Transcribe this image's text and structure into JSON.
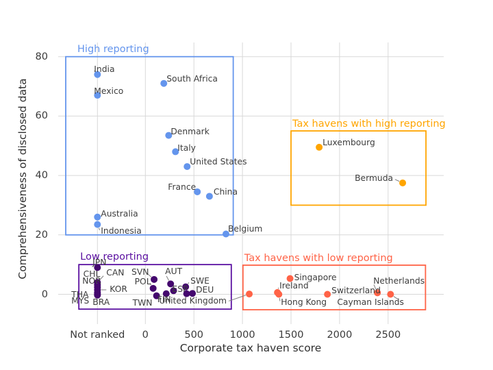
{
  "chart_data": {
    "type": "scatter",
    "title": "",
    "xlabel": "Corporate tax haven score",
    "ylabel": "Comprehensiveness of disclosed data",
    "x_ticks": [
      "Not ranked",
      "0",
      "500",
      "1000",
      "1500",
      "2000",
      "2500"
    ],
    "y_ticks": [
      "0",
      "20",
      "40",
      "60",
      "80"
    ],
    "xlim": [
      "Not ranked",
      3000
    ],
    "ylim": [
      -7,
      85
    ],
    "grid": true,
    "legend_position": "none",
    "grid_color": "#d8d8d8",
    "label_color": "#3d3d3d",
    "connector_color": "#7f7f7f",
    "note_x_values": "x is corporate tax haven score; 'NR' means plotted in the Not ranked column",
    "series": [
      {
        "name": "High reporting",
        "color": "#6495ED",
        "dot_color": "#6495ED",
        "box": {
          "x": [
            -820,
            905
          ],
          "y": [
            20,
            80
          ]
        },
        "label_offset": [
          17,
          -19
        ],
        "points": [
          {
            "label": "India",
            "x": "NR",
            "y": 74,
            "dx": -5,
            "dy": -15,
            "align": "l",
            "line": true
          },
          {
            "label": "Mexico",
            "x": "NR",
            "y": 67,
            "dx": -5,
            "dy": -13,
            "align": "l",
            "line": true
          },
          {
            "label": "South Africa",
            "x": 190,
            "y": 71,
            "dx": 4,
            "dy": -14,
            "align": "l",
            "line": true
          },
          {
            "label": "Denmark",
            "x": 240,
            "y": 53.5,
            "dx": 3,
            "dy": -13,
            "align": "l",
            "line": true
          },
          {
            "label": "Italy",
            "x": 310,
            "y": 48,
            "dx": 3,
            "dy": -12,
            "align": "l",
            "line": true
          },
          {
            "label": "United States",
            "x": 430,
            "y": 43,
            "dx": 4,
            "dy": -14,
            "align": "l",
            "line": true
          },
          {
            "label": "France",
            "x": 535,
            "y": 34.5,
            "dx": -2,
            "dy": -14,
            "align": "r",
            "line": true
          },
          {
            "label": "China",
            "x": 660,
            "y": 33,
            "dx": 6,
            "dy": -13,
            "align": "l",
            "line": true
          },
          {
            "label": "Australia",
            "x": "NR",
            "y": 26,
            "dx": 5,
            "dy": -12,
            "align": "l",
            "line": true
          },
          {
            "label": "Indonesia",
            "x": "NR",
            "y": 23.5,
            "dx": 5,
            "dy": 2,
            "align": "l",
            "line": true
          },
          {
            "label": "Belgium",
            "x": 830,
            "y": 20.3,
            "dx": 3,
            "dy": -14,
            "align": "l",
            "line": true
          }
        ]
      },
      {
        "name": "Tax havens with high reporting",
        "color": "#FFA500",
        "dot_color": "#FFA500",
        "box": {
          "x": [
            1500,
            2890
          ],
          "y": [
            30,
            55
          ]
        },
        "label_offset": [
          2,
          -18
        ],
        "points": [
          {
            "label": "Luxembourg",
            "x": 1790,
            "y": 49.5,
            "dx": 5,
            "dy": -14,
            "align": "l",
            "line": true
          },
          {
            "label": "Bermuda",
            "x": 2650,
            "y": 37.5,
            "dx": -14,
            "dy": -14,
            "align": "r",
            "line": true
          }
        ]
      },
      {
        "name": "Low reporting",
        "color": "#5A0FA0",
        "dot_color": "#44076E",
        "box": {
          "x": [
            -685,
            885
          ],
          "y": [
            -5,
            10
          ]
        },
        "label_offset": [
          2,
          -19
        ],
        "points": [
          {
            "label": "JPN",
            "x": "NR",
            "y": 9,
            "dx": 3,
            "dy": -14,
            "align": "c",
            "line": false
          },
          {
            "label": "CAN",
            "x": "NR",
            "y": 4,
            "dx": 13,
            "dy": -21,
            "align": "l",
            "line": true
          },
          {
            "label": "CHL",
            "x": "NR",
            "y": 3.2,
            "dx": 4,
            "dy": -23,
            "align": "r",
            "line": false
          },
          {
            "label": "NOR",
            "x": "NR",
            "y": 2.4,
            "dx": -22,
            "dy": -16,
            "align": "l",
            "line": true
          },
          {
            "label": "KOR",
            "x": "NR",
            "y": 1.5,
            "dx": 18,
            "dy": -8,
            "align": "l",
            "line": true
          },
          {
            "label": "THA",
            "x": "NR",
            "y": 0.5,
            "dx": -38,
            "dy": -4,
            "align": "l",
            "line": false
          },
          {
            "label": "MYS",
            "x": "NR",
            "y": 0,
            "dx": -38,
            "dy": 2,
            "align": "l",
            "line": false
          },
          {
            "label": "BRA",
            "x": "NR",
            "y": -0.3,
            "dx": -7,
            "dy": 3,
            "align": "l",
            "line": false
          },
          {
            "label": "SVN",
            "x": 90,
            "y": 5,
            "dx": -33,
            "dy": -18,
            "align": "l",
            "line": true
          },
          {
            "label": "POL",
            "x": 80,
            "y": 2,
            "dx": -27,
            "dy": -17,
            "align": "l",
            "line": true
          },
          {
            "label": "TWN",
            "x": 115,
            "y": -0.5,
            "dx": -35,
            "dy": 3,
            "align": "l",
            "line": false
          },
          {
            "label": "FIN",
            "x": 215,
            "y": 0.2,
            "dx": -13,
            "dy": 1,
            "align": "l",
            "line": false
          },
          {
            "label": "AUT",
            "x": 260,
            "y": 3.5,
            "dx": -8,
            "dy": -25,
            "align": "l",
            "line": true
          },
          {
            "label": "ESP",
            "x": 290,
            "y": 1.2,
            "dx": -2,
            "dy": -9,
            "align": "l",
            "line": true
          },
          {
            "label": "SWE",
            "x": 415,
            "y": 2.5,
            "dx": 7,
            "dy": -16,
            "align": "l",
            "line": true
          },
          {
            "label": "",
            "x": 425,
            "y": 0.2,
            "dx": 0,
            "dy": 0,
            "align": "l",
            "line": false
          },
          {
            "label": "DEU",
            "x": 485,
            "y": 0.3,
            "dx": 5,
            "dy": -12,
            "align": "l",
            "line": true
          }
        ]
      },
      {
        "name": "Tax havens with low reporting",
        "color": "#FF6347",
        "dot_color": "#FF6347",
        "box": {
          "x": [
            1005,
            2885
          ],
          "y": [
            -5.2,
            9.8
          ]
        },
        "label_offset": [
          2,
          -18
        ],
        "points": [
          {
            "label": "United Kingdom",
            "x": 1070,
            "y": 0.1,
            "dx": -33,
            "dy": 3,
            "align": "r",
            "line": true,
            "full": true
          },
          {
            "label": "Ireland",
            "x": 1360,
            "y": 0.6,
            "dx": 3,
            "dy": -17,
            "align": "l",
            "line": true
          },
          {
            "label": "Hong Kong",
            "x": 1375,
            "y": 0,
            "dx": 3,
            "dy": 4,
            "align": "l",
            "line": true
          },
          {
            "label": "Singapore",
            "x": 1490,
            "y": 5.3,
            "dx": 6,
            "dy": -9,
            "align": "l",
            "line": true
          },
          {
            "label": "Switzerland",
            "x": 1875,
            "y": 0,
            "dx": 6,
            "dy": -13,
            "align": "l",
            "line": false
          },
          {
            "label": "Netherlands",
            "x": 2390,
            "y": 0.5,
            "dx": -6,
            "dy": -24,
            "align": "l",
            "line": true
          },
          {
            "label": "Cayman Islands",
            "x": 2525,
            "y": 0,
            "dx": -78,
            "dy": 4,
            "align": "l",
            "line": true
          }
        ]
      }
    ]
  }
}
